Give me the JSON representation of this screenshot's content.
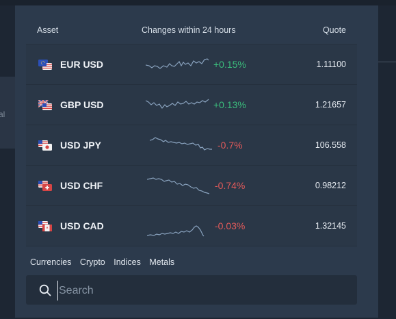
{
  "background": {
    "left_text": "al"
  },
  "header": {
    "asset": "Asset",
    "changes": "Changes within 24 hours",
    "quote": "Quote"
  },
  "colors": {
    "positive": "#3bbf7d",
    "negative": "#e25a5a",
    "sparkline": "#8aa3bf"
  },
  "rows": [
    {
      "pair": "EUR USD",
      "change": "+0.15%",
      "direction": "up",
      "quote": "1.11100",
      "flag_icon": "eu-us-flag-icon"
    },
    {
      "pair": "GBP USD",
      "change": "+0.13%",
      "direction": "up",
      "quote": "1.21657",
      "flag_icon": "uk-us-flag-icon"
    },
    {
      "pair": "USD JPY",
      "change": "-0.7%",
      "direction": "down",
      "quote": "106.558",
      "flag_icon": "us-jp-flag-icon"
    },
    {
      "pair": "USD CHF",
      "change": "-0.74%",
      "direction": "down",
      "quote": "0.98212",
      "flag_icon": "us-ch-flag-icon"
    },
    {
      "pair": "USD CAD",
      "change": "-0.03%",
      "direction": "down",
      "quote": "1.32145",
      "flag_icon": "us-ca-flag-icon"
    }
  ],
  "tabs": [
    "Currencies",
    "Crypto",
    "Indices",
    "Metals"
  ],
  "search": {
    "placeholder": "Search",
    "value": ""
  }
}
